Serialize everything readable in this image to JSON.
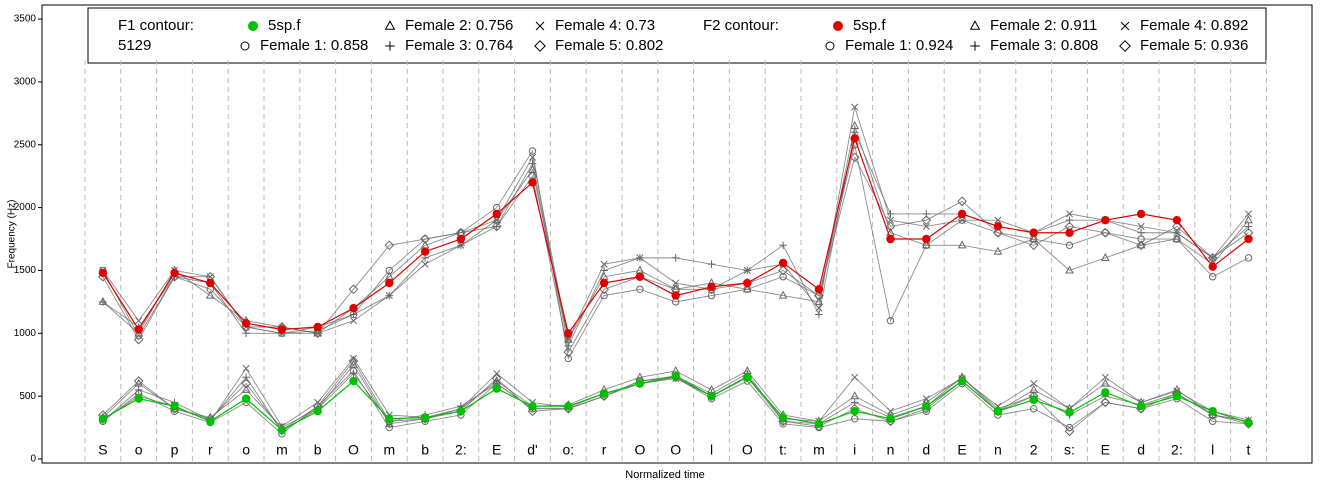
{
  "chart_data": {
    "type": "line",
    "x_label": "Normalized time",
    "y_label": "Frequency (Hz)",
    "categories": [
      "S",
      "o",
      "p",
      "r",
      "o",
      "m",
      "b",
      "O",
      "m",
      "b",
      "2:",
      "E",
      "d'",
      "o:",
      "r",
      "O",
      "O",
      "l",
      "O",
      "t:",
      "m",
      "i",
      "n",
      "d",
      "E",
      "n",
      "2",
      "s:",
      "E",
      "d",
      "2:",
      "l",
      "t"
    ],
    "ylim": [
      -32,
      3612
    ],
    "yticks": [
      0,
      500,
      1000,
      1500,
      2000,
      2500,
      3000,
      3500
    ],
    "grid": false,
    "series_groups": [
      {
        "title": "F1 contour:",
        "subtitle": "5129",
        "series": [
          {
            "name": "5sp.f",
            "color": "#00c000",
            "marker": "dot",
            "values": [
              320,
              480,
              420,
              300,
              480,
              230,
              380,
              620,
              320,
              330,
              380,
              560,
              420,
              420,
              520,
              600,
              660,
              500,
              650,
              330,
              280,
              380,
              320,
              420,
              620,
              380,
              470,
              370,
              530,
              420,
              500,
              380,
              290
            ]
          },
          {
            "name": "Female 1: 0.858",
            "color": "#666666",
            "marker": "circle",
            "values": [
              300,
              520,
              380,
              290,
              450,
              200,
              420,
              700,
              250,
              300,
              350,
              600,
              400,
              400,
              500,
              620,
              650,
              480,
              620,
              280,
              250,
              320,
              300,
              380,
              600,
              350,
              400,
              250,
              450,
              400,
              480,
              300,
              280
            ]
          },
          {
            "name": "Female 2: 0.756",
            "color": "#666666",
            "marker": "triangle",
            "values": [
              330,
              600,
              400,
              330,
              550,
              250,
              400,
              750,
              280,
              320,
              400,
              620,
              420,
              430,
              550,
              650,
              700,
              550,
              700,
              350,
              300,
              500,
              350,
              450,
              650,
              380,
              550,
              400,
              600,
              450,
              550,
              350,
              300
            ]
          },
          {
            "name": "Female 3: 0.764",
            "color": "#666666",
            "marker": "plus",
            "values": [
              300,
              550,
              450,
              310,
              650,
              220,
              400,
              680,
              300,
              350,
              420,
              600,
              400,
              400,
              500,
              620,
              660,
              520,
              680,
              300,
              280,
              450,
              330,
              420,
              650,
              400,
              500,
              350,
              500,
              430,
              520,
              350,
              300
            ]
          },
          {
            "name": "Female 4: 0.73",
            "color": "#666666",
            "marker": "cross",
            "values": [
              310,
              500,
              420,
              300,
              720,
              260,
              450,
              800,
              350,
              330,
              400,
              680,
              450,
              410,
              520,
              600,
              640,
              500,
              660,
              320,
              300,
              650,
              380,
              480,
              640,
              420,
              600,
              400,
              650,
              450,
              540,
              380,
              310
            ]
          },
          {
            "name": "Female 5: 0.802",
            "color": "#666666",
            "marker": "diamond",
            "values": [
              350,
              620,
              400,
              320,
              600,
              230,
              420,
              780,
              300,
              320,
              380,
              640,
              380,
              400,
              500,
              600,
              650,
              500,
              650,
              300,
              260,
              400,
              300,
              400,
              620,
              380,
              500,
              220,
              450,
              400,
              520,
              350,
              280
            ]
          }
        ]
      },
      {
        "title": "F2 contour:",
        "series": [
          {
            "name": "5sp.f",
            "color": "#e00000",
            "marker": "dot",
            "values": [
              1480,
              1030,
              1480,
              1400,
              1080,
              1030,
              1050,
              1200,
              1400,
              1650,
              1750,
              1950,
              2200,
              1000,
              1400,
              1450,
              1300,
              1370,
              1400,
              1560,
              1350,
              2550,
              1750,
              1750,
              1950,
              1850,
              1800,
              1800,
              1900,
              1950,
              1900,
              1530,
              1750
            ]
          },
          {
            "name": "Female 1: 0.924",
            "color": "#666666",
            "marker": "circle",
            "values": [
              1500,
              980,
              1450,
              1350,
              1050,
              1000,
              1020,
              1150,
              1500,
              1750,
              1800,
              2000,
              2450,
              800,
              1300,
              1350,
              1250,
              1300,
              1350,
              1450,
              1300,
              2500,
              1100,
              1700,
              1900,
              1800,
              1750,
              1700,
              1800,
              1750,
              1750,
              1450,
              1600
            ]
          },
          {
            "name": "Female 2: 0.911",
            "color": "#666666",
            "marker": "triangle",
            "values": [
              1250,
              1000,
              1500,
              1300,
              1100,
              1050,
              1000,
              1200,
              1450,
              1700,
              1800,
              1900,
              2300,
              950,
              1450,
              1500,
              1350,
              1400,
              1350,
              1300,
              1250,
              2650,
              1800,
              1700,
              1700,
              1650,
              1750,
              1500,
              1600,
              1700,
              1750,
              1550,
              1900
            ]
          },
          {
            "name": "Female 3: 0.808",
            "color": "#666666",
            "marker": "plus",
            "values": [
              1250,
              1050,
              1450,
              1400,
              1000,
              1000,
              1050,
              1150,
              1300,
              1600,
              1700,
              1850,
              2350,
              900,
              1500,
              1600,
              1600,
              1550,
              1500,
              1700,
              1150,
              2600,
              1950,
              1950,
              1950,
              1850,
              1800,
              1900,
              1900,
              1800,
              1800,
              1600,
              1850
            ]
          },
          {
            "name": "Female 4: 0.892",
            "color": "#666666",
            "marker": "cross",
            "values": [
              1500,
              1100,
              1500,
              1450,
              1050,
              1000,
              1000,
              1100,
              1300,
              1550,
              1700,
              1900,
              2400,
              950,
              1550,
              1600,
              1400,
              1350,
              1500,
              1550,
              1200,
              2800,
              1900,
              1850,
              1900,
              1900,
              1800,
              1950,
              1900,
              1850,
              1800,
              1600,
              1950
            ]
          },
          {
            "name": "Female 5: 0.936",
            "color": "#666666",
            "marker": "diamond",
            "values": [
              1450,
              950,
              1450,
              1450,
              1050,
              1050,
              1000,
              1350,
              1700,
              1750,
              1800,
              1850,
              2250,
              850,
              1350,
              1450,
              1350,
              1350,
              1400,
              1500,
              1300,
              2400,
              1850,
              1900,
              2050,
              1800,
              1700,
              1850,
              1800,
              1700,
              1850,
              1600,
              1800
            ]
          }
        ]
      }
    ]
  }
}
